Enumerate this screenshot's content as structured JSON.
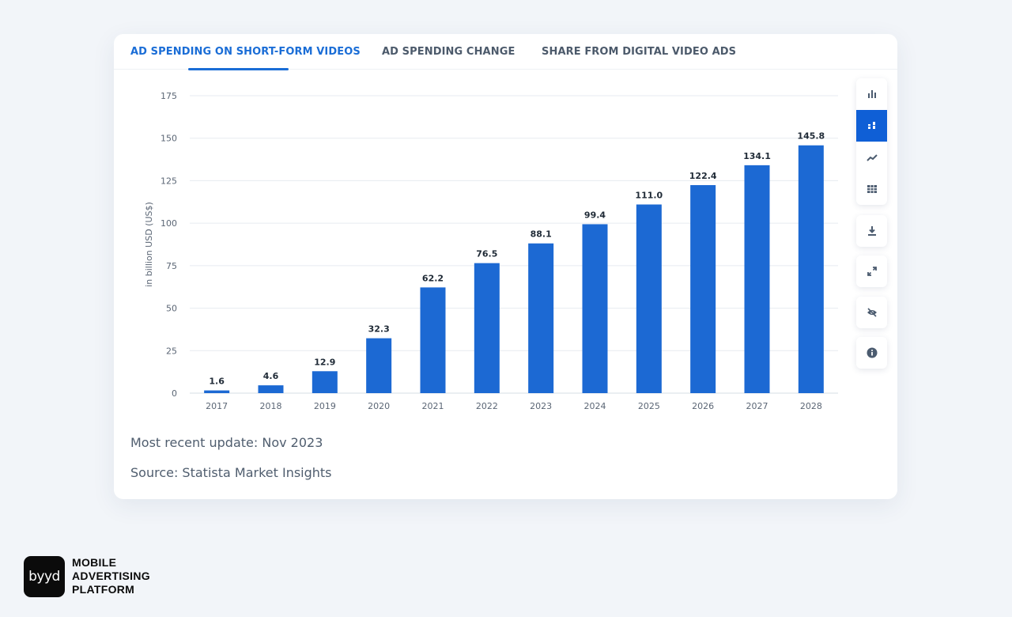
{
  "tabs": [
    {
      "label": "AD SPENDING ON SHORT-FORM VIDEOS",
      "active": true
    },
    {
      "label": "AD SPENDING CHANGE",
      "active": false
    },
    {
      "label": "SHARE FROM DIGITAL VIDEO ADS",
      "active": false
    }
  ],
  "colors": {
    "accent": "#1a6dd6",
    "bar": "#1c69d3",
    "grid": "#e7ebf0"
  },
  "tools": [
    {
      "icon": "bar-chart-icon",
      "active": false
    },
    {
      "icon": "stacked-bar-icon",
      "active": true
    },
    {
      "icon": "line-chart-icon",
      "active": false
    },
    {
      "icon": "table-icon",
      "active": false
    },
    {
      "icon": "download-icon",
      "active": false
    },
    {
      "icon": "fullscreen-icon",
      "active": false
    },
    {
      "icon": "hide-icon",
      "active": false
    },
    {
      "icon": "info-icon",
      "active": false
    }
  ],
  "chart_data": {
    "type": "bar",
    "title": "",
    "xlabel": "",
    "ylabel": "in billion USD (US$)",
    "categories": [
      "2017",
      "2018",
      "2019",
      "2020",
      "2021",
      "2022",
      "2023",
      "2024",
      "2025",
      "2026",
      "2027",
      "2028"
    ],
    "values": [
      1.6,
      4.6,
      12.9,
      32.3,
      62.2,
      76.5,
      88.1,
      99.4,
      111.0,
      122.4,
      134.1,
      145.8
    ],
    "value_labels": [
      "1.6",
      "4.6",
      "12.9",
      "32.3",
      "62.2",
      "76.5",
      "88.1",
      "99.4",
      "111.0",
      "122.4",
      "134.1",
      "145.8"
    ],
    "ylim": [
      0,
      175
    ],
    "yticks": [
      0,
      25,
      50,
      75,
      100,
      125,
      150,
      175
    ],
    "grid": true,
    "legend": "none"
  },
  "footer": {
    "update": "Most recent update: Nov 2023",
    "source": "Source: Statista Market Insights"
  },
  "brand": {
    "logo_text": "byyd",
    "line1": "MOBILE",
    "line2": "ADVERTISING",
    "line3": "PLATFORM"
  }
}
